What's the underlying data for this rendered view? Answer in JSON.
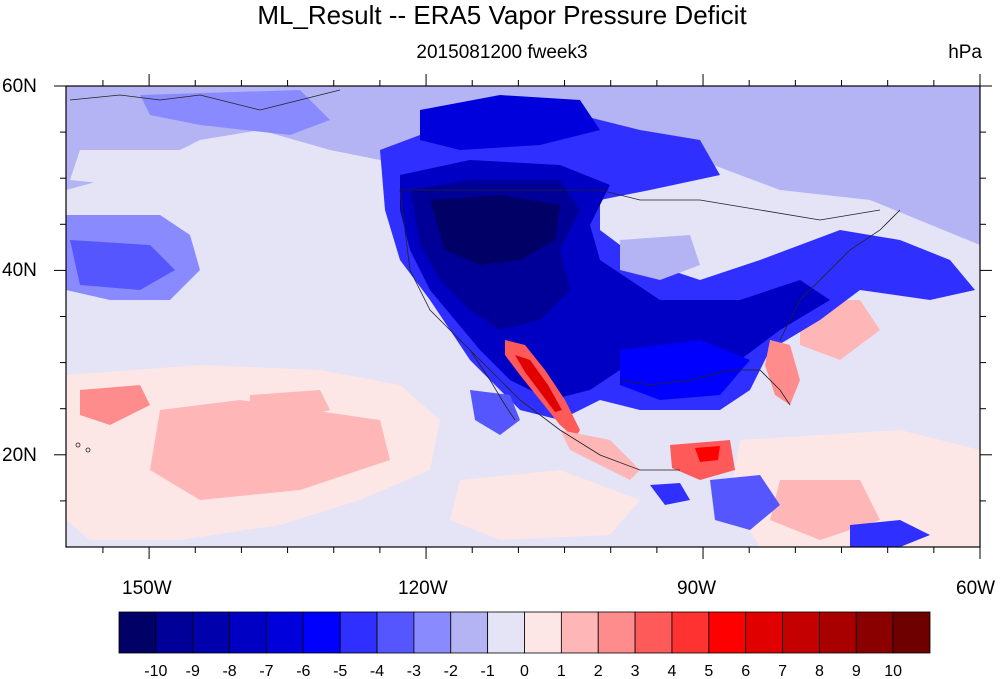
{
  "map": {
    "title": "ML_Result -- ERA5 Vapor Pressure Deficit",
    "subtitle": "2015081200 fweek3",
    "units": "hPa",
    "lat_labels": [
      "60N",
      "40N",
      "20N"
    ],
    "lon_labels": [
      "150W",
      "120W",
      "90W",
      "60W"
    ],
    "lat_values": [
      60,
      40,
      20
    ],
    "lon_values": [
      -150,
      -120,
      -90,
      -60
    ],
    "extent": {
      "lon_min": -159,
      "lon_max": -60,
      "lat_min": 10,
      "lat_max": 60
    },
    "projection": "cylindrical-equidistant",
    "land_fill": "none"
  },
  "colorbar": {
    "labels": [
      "-10",
      "-9",
      "-8",
      "-7",
      "-6",
      "-5",
      "-4",
      "-3",
      "-2",
      "-1",
      "0",
      "1",
      "2",
      "3",
      "4",
      "5",
      "6",
      "7",
      "8",
      "9",
      "10"
    ],
    "colors": [
      "#000066",
      "#000099",
      "#0000ad",
      "#0000c4",
      "#0000dc",
      "#0000ff",
      "#2f2fff",
      "#5656ff",
      "#8a8aff",
      "#b4b4f5",
      "#e4e4f6",
      "#fde6e6",
      "#ffb6b6",
      "#ff8c8c",
      "#ff5a5a",
      "#ff3232",
      "#ff0000",
      "#e00000",
      "#c40000",
      "#a80000",
      "#8a0000",
      "#6e0000"
    ]
  }
}
